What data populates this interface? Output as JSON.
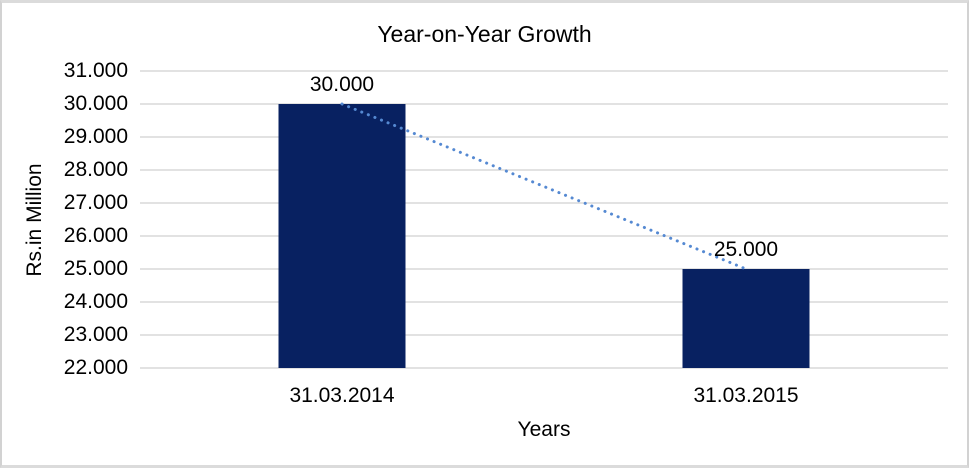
{
  "chart_data": {
    "type": "bar",
    "title": "Year-on-Year Growth",
    "xlabel": "Years",
    "ylabel": "Rs.in Million",
    "categories": [
      "31.03.2014",
      "31.03.2015"
    ],
    "values": [
      30000,
      25000
    ],
    "value_labels": [
      "30.000",
      "25.000"
    ],
    "ylim": [
      22000,
      31000
    ],
    "y_tick_step": 1000,
    "y_tick_labels": [
      "31.000",
      "30.000",
      "29.000",
      "28.000",
      "27.000",
      "26.000",
      "25.000",
      "24.000",
      "23.000",
      "22.000"
    ],
    "grid": true,
    "legend_position": "none",
    "trendline": {
      "style": "dotted",
      "from_category": "31.03.2014",
      "to_category": "31.03.2015",
      "color": "#5589d2"
    },
    "colors": {
      "bar": "#082161",
      "trendline": "#5589d2",
      "gridline": "#d9d9d9",
      "text": "#000000",
      "background": "#ffffff",
      "frame_border": "#d9d9d9"
    }
  }
}
